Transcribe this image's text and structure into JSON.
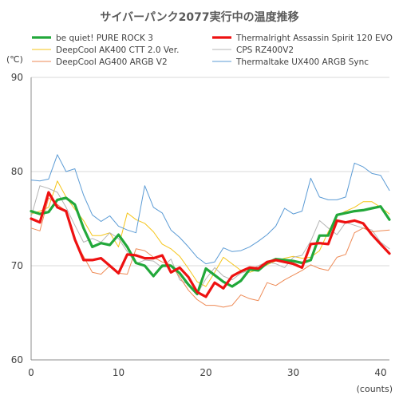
{
  "chart_data": {
    "type": "line",
    "title": "サイバーパンク2077実行中の温度推移",
    "ylabel": "(℃)",
    "xlabel": "(counts)",
    "xlim": [
      0,
      41
    ],
    "ylim": [
      60,
      90
    ],
    "xticks": [
      0,
      10,
      20,
      30,
      40
    ],
    "yticks": [
      60,
      70,
      80,
      90
    ],
    "x_tick_labels": [
      "0",
      "10",
      "20",
      "30",
      "40"
    ],
    "y_tick_labels": [
      "60",
      "70",
      "80",
      "90"
    ],
    "grid": true,
    "series": [
      {
        "name": "be quiet! PURE ROCK 3",
        "color": "#22a83a",
        "width": "thick",
        "x": [
          0,
          1,
          2,
          3,
          4,
          5,
          6,
          7,
          8,
          9,
          10,
          11,
          12,
          13,
          14,
          15,
          16,
          17,
          18,
          19,
          20,
          21,
          22,
          23,
          24,
          25,
          26,
          27,
          28,
          29,
          30,
          31,
          32,
          33,
          34,
          35,
          36,
          37,
          38,
          39,
          40,
          41
        ],
        "values": [
          75.8,
          75.5,
          75.7,
          77.0,
          77.2,
          76.5,
          74.0,
          72.0,
          72.4,
          72.2,
          73.3,
          72.0,
          70.3,
          70.0,
          68.9,
          70.0,
          70.0,
          69.2,
          68.0,
          67.0,
          69.7,
          69.0,
          68.3,
          67.8,
          68.4,
          69.6,
          69.5,
          70.3,
          70.7,
          70.6,
          70.5,
          70.3,
          70.6,
          73.2,
          73.2,
          75.4,
          75.6,
          75.8,
          75.9,
          76.1,
          76.3,
          74.9
        ]
      },
      {
        "name": "Thermalright Assassin Spirit 120 EVO",
        "color": "#ee1111",
        "width": "thick",
        "x": [
          0,
          1,
          2,
          3,
          4,
          5,
          6,
          7,
          8,
          9,
          10,
          11,
          12,
          13,
          14,
          15,
          16,
          17,
          18,
          19,
          20,
          21,
          22,
          23,
          24,
          25,
          26,
          27,
          28,
          29,
          30,
          31,
          32,
          33,
          34,
          35,
          36,
          37,
          38,
          39,
          40,
          41
        ],
        "values": [
          75.0,
          74.6,
          77.8,
          76.2,
          75.8,
          72.8,
          70.6,
          70.6,
          70.8,
          70.0,
          69.2,
          71.2,
          71.1,
          70.8,
          70.8,
          71.1,
          69.3,
          69.8,
          68.8,
          67.2,
          66.7,
          68.2,
          67.6,
          68.9,
          69.4,
          69.8,
          69.7,
          70.4,
          70.6,
          70.4,
          70.2,
          69.8,
          72.3,
          72.4,
          72.3,
          74.8,
          74.6,
          74.8,
          74.5,
          73.3,
          72.3,
          71.3
        ]
      },
      {
        "name": "DeepCool AK400 CTT 2.0 Ver.",
        "color": "#f5c518",
        "width": "thin",
        "x": [
          0,
          1,
          2,
          3,
          4,
          5,
          6,
          7,
          8,
          9,
          10,
          11,
          12,
          13,
          14,
          15,
          16,
          17,
          18,
          19,
          20,
          21,
          22,
          23,
          24,
          25,
          26,
          27,
          28,
          29,
          30,
          31,
          32,
          33,
          34,
          35,
          36,
          37,
          38,
          39,
          40,
          41
        ],
        "values": [
          75.5,
          75.8,
          76.2,
          79.0,
          77.3,
          76.0,
          74.8,
          73.2,
          73.2,
          73.5,
          72.0,
          75.6,
          74.9,
          74.5,
          73.6,
          72.3,
          71.8,
          71.0,
          69.7,
          68.3,
          67.8,
          69.3,
          70.9,
          70.2,
          69.5,
          69.3,
          69.6,
          70.1,
          70.5,
          70.8,
          71.0,
          70.8,
          70.9,
          71.6,
          73.6,
          75.3,
          75.8,
          76.2,
          76.8,
          76.8,
          76.2,
          75.5
        ]
      },
      {
        "name": "CPS RZ400V2",
        "color": "#b4b4b4",
        "width": "thin",
        "x": [
          0,
          1,
          2,
          3,
          4,
          5,
          6,
          7,
          8,
          9,
          10,
          11,
          12,
          13,
          14,
          15,
          16,
          17,
          18,
          19,
          20,
          21,
          22,
          23,
          24,
          25,
          26,
          27,
          28,
          29,
          30,
          31,
          32,
          33,
          34,
          35,
          36,
          37,
          38,
          39,
          40,
          41
        ],
        "values": [
          75.2,
          78.5,
          78.2,
          77.8,
          76.2,
          74.3,
          72.5,
          72.9,
          72.5,
          73.5,
          72.9,
          71.5,
          70.2,
          70.6,
          70.5,
          69.8,
          70.7,
          68.5,
          68.0,
          67.0,
          68.6,
          69.8,
          68.9,
          68.5,
          69.2,
          69.5,
          70.0,
          70.4,
          70.2,
          69.8,
          70.9,
          71.1,
          72.6,
          74.8,
          74.0,
          73.3,
          74.6,
          74.3,
          74.0,
          73.8,
          72.5,
          71.8
        ]
      },
      {
        "name": "DeepCool  AG400 ARGB V2",
        "color": "#ee8a55",
        "width": "thin",
        "x": [
          0,
          1,
          2,
          3,
          4,
          5,
          6,
          7,
          8,
          9,
          10,
          11,
          12,
          13,
          14,
          15,
          16,
          17,
          18,
          19,
          20,
          21,
          22,
          23,
          24,
          25,
          26,
          27,
          28,
          29,
          30,
          31,
          32,
          33,
          34,
          35,
          36,
          37,
          38,
          39,
          40,
          41
        ],
        "values": [
          74.0,
          73.7,
          77.2,
          76.5,
          75.8,
          72.7,
          71.0,
          69.3,
          69.1,
          70.0,
          69.2,
          69.1,
          71.8,
          71.6,
          70.9,
          70.4,
          70.1,
          68.8,
          67.4,
          66.4,
          65.8,
          65.8,
          65.6,
          65.8,
          66.9,
          66.5,
          66.3,
          68.2,
          67.9,
          68.5,
          69.0,
          69.5,
          70.1,
          69.7,
          69.5,
          70.9,
          71.2,
          73.5,
          74.0,
          73.6,
          73.7,
          73.8
        ]
      },
      {
        "name": "Thermaltake UX400 ARGB Sync",
        "color": "#5b9bd5",
        "width": "thin",
        "x": [
          0,
          1,
          2,
          3,
          4,
          5,
          6,
          7,
          8,
          9,
          10,
          11,
          12,
          13,
          14,
          15,
          16,
          17,
          18,
          19,
          20,
          21,
          22,
          23,
          24,
          25,
          26,
          27,
          28,
          29,
          30,
          31,
          32,
          33,
          34,
          35,
          36,
          37,
          38,
          39,
          40,
          41
        ],
        "values": [
          79.1,
          79.0,
          79.2,
          81.8,
          80.0,
          80.3,
          77.5,
          75.4,
          74.7,
          75.3,
          74.2,
          73.8,
          73.5,
          78.5,
          76.2,
          75.6,
          73.8,
          73.0,
          72.0,
          70.9,
          70.2,
          70.4,
          71.9,
          71.5,
          71.6,
          72.0,
          72.6,
          73.3,
          74.2,
          76.1,
          75.5,
          75.8,
          79.3,
          77.3,
          77.0,
          77.0,
          77.3,
          80.9,
          80.5,
          79.8,
          79.6,
          78.0
        ]
      }
    ],
    "legend": {
      "placement": "top",
      "columns": 2
    }
  }
}
